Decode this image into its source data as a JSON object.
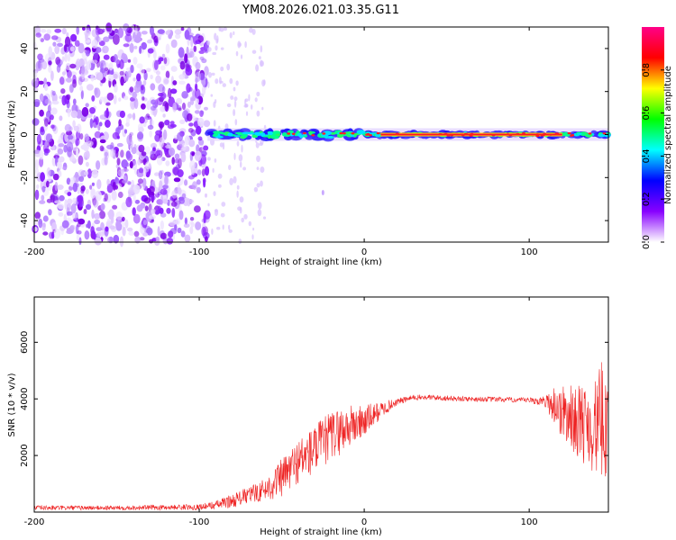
{
  "figure": {
    "title": "YM08.2026.021.03.35.G11"
  },
  "chart_data": [
    {
      "type": "heatmap",
      "xlabel": "Height of straight line (km)",
      "ylabel": "Frequency (Hz)",
      "xlim": [
        -200,
        148
      ],
      "ylim": [
        -50,
        50
      ],
      "x_ticks": [
        -200,
        -100,
        0,
        100
      ],
      "y_ticks": [
        -40,
        -20,
        0,
        20,
        40
      ],
      "colorbar": {
        "label": "Normalized spectral amplitude",
        "range": [
          0,
          1
        ],
        "ticks": [
          0.0,
          0.2,
          0.4,
          0.6,
          0.8
        ],
        "tick_labels": [
          "0.0",
          "0.2",
          "0.4",
          "0.6",
          "0.8"
        ],
        "colors": [
          "#ffffff",
          "#8800ff",
          "#0000ff",
          "#00ffff",
          "#00ff00",
          "#ffff00",
          "#ff0000",
          "#ff0088"
        ]
      },
      "features": {
        "noise_region_x": [
          -200,
          -95
        ],
        "signal_line_x": [
          -95,
          148
        ],
        "signal_line_freq": 0,
        "strong_signal_x": [
          10,
          120
        ]
      }
    },
    {
      "type": "line",
      "xlabel": "Height of straight line (km)",
      "ylabel": "SNR (10 * v/v)",
      "xlim": [
        -200,
        148
      ],
      "ylim": [
        0,
        7600
      ],
      "x_ticks": [
        -200,
        -100,
        0,
        100
      ],
      "y_ticks": [
        2000,
        4000,
        6000
      ],
      "series_color": "#ee2222",
      "envelope": {
        "x": [
          -200,
          -150,
          -100,
          -90,
          -80,
          -70,
          -60,
          -50,
          -40,
          -30,
          -20,
          -10,
          0,
          10,
          20,
          30,
          40,
          60,
          80,
          100,
          110,
          115,
          120,
          130,
          140,
          148
        ],
        "mean": [
          150,
          150,
          180,
          250,
          400,
          600,
          800,
          1200,
          1800,
          2200,
          2700,
          3000,
          3200,
          3600,
          3900,
          4050,
          4050,
          4000,
          3980,
          3950,
          3900,
          3800,
          3500,
          3200,
          3000,
          3500
        ],
        "amp": [
          80,
          80,
          100,
          150,
          250,
          300,
          400,
          700,
          800,
          900,
          900,
          800,
          600,
          300,
          120,
          100,
          100,
          90,
          90,
          90,
          200,
          700,
          1000,
          1300,
          1700,
          2500
        ]
      }
    }
  ]
}
